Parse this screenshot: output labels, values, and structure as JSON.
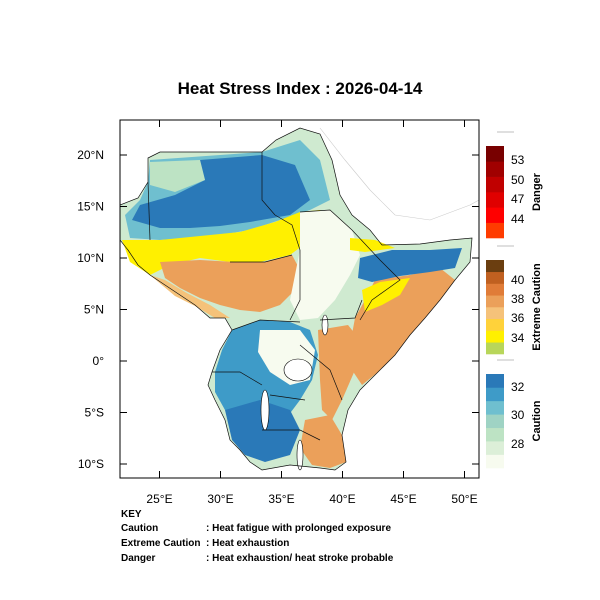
{
  "title": "Heat Stress Index : 2026-04-14",
  "map": {
    "x_ticks": [
      {
        "value": 25,
        "label": "25°E"
      },
      {
        "value": 30,
        "label": "30°E"
      },
      {
        "value": 35,
        "label": "35°E"
      },
      {
        "value": 40,
        "label": "40°E"
      },
      {
        "value": 45,
        "label": "45°E"
      },
      {
        "value": 50,
        "label": "50°E"
      }
    ],
    "y_ticks": [
      {
        "value": 20,
        "label": "20°N"
      },
      {
        "value": 15,
        "label": "15°N"
      },
      {
        "value": 10,
        "label": "10°N"
      },
      {
        "value": 5,
        "label": "5°N"
      },
      {
        "value": 0,
        "label": "0°"
      },
      {
        "value": -5,
        "label": "5°S"
      },
      {
        "value": -10,
        "label": "10°S"
      }
    ]
  },
  "colorbars": [
    {
      "name": "Danger",
      "colors": [
        "#ff3c00",
        "#ff0000",
        "#e00000",
        "#c00000",
        "#a00000",
        "#780000"
      ],
      "labels": [
        "44",
        "47",
        "50",
        "53"
      ]
    },
    {
      "name": "Extreme Caution",
      "colors": [
        "#b8d65a",
        "#fff000",
        "#ffd23a",
        "#f5c27a",
        "#eba05a",
        "#e07c38",
        "#c06020",
        "#6b3e10"
      ],
      "labels": [
        "34",
        "36",
        "38",
        "40"
      ]
    },
    {
      "name": "Caution",
      "colors": [
        "#f7fbef",
        "#dcefd8",
        "#bde3c4",
        "#9fd3c4",
        "#6fbfcf",
        "#3e9bc8",
        "#2a79b8"
      ],
      "labels": [
        "28",
        "30",
        "32"
      ]
    }
  ],
  "key": {
    "heading": "KEY",
    "rows": [
      {
        "term": "Caution",
        "desc": ": Heat fatigue with prolonged exposure"
      },
      {
        "term": "Extreme Caution",
        "desc": ": Heat exhaustion"
      },
      {
        "term": "Danger",
        "desc": ": Heat exhaustion/ heat stroke probable"
      }
    ]
  }
}
